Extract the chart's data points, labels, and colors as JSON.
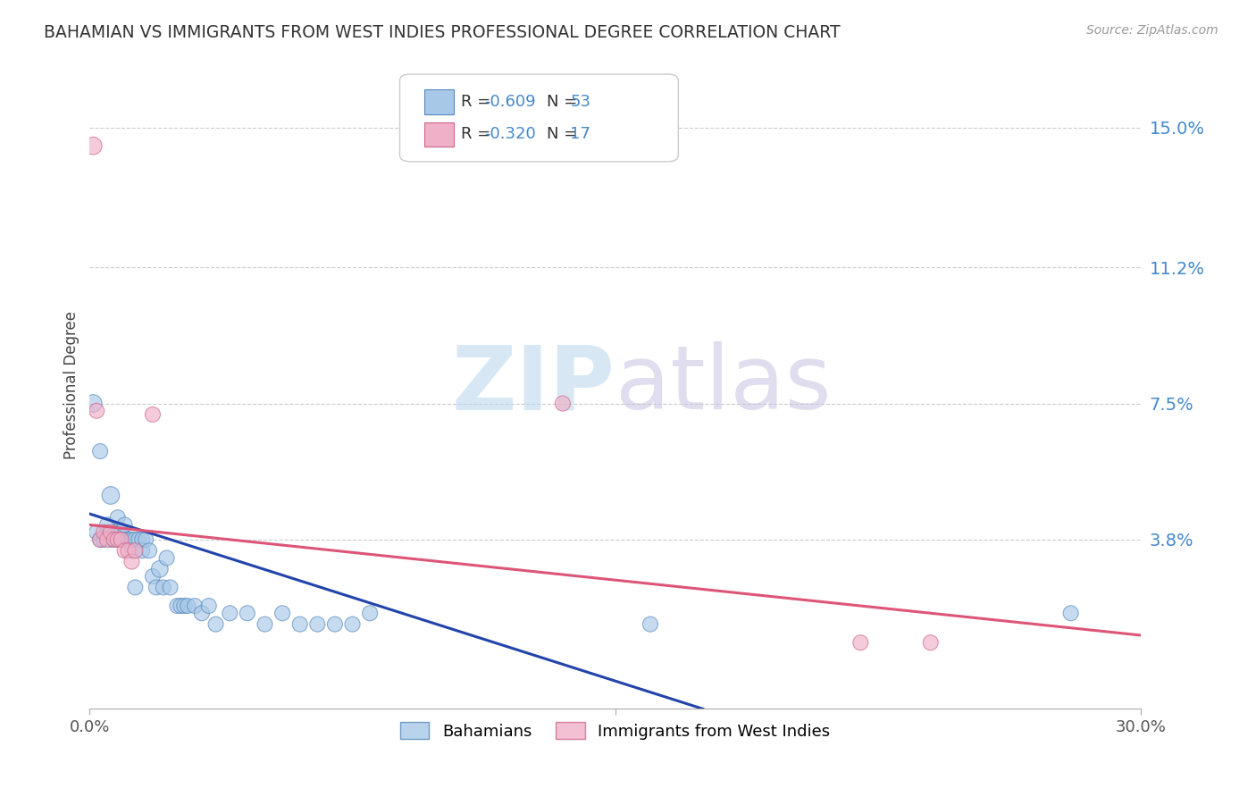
{
  "title": "BAHAMIAN VS IMMIGRANTS FROM WEST INDIES PROFESSIONAL DEGREE CORRELATION CHART",
  "source": "Source: ZipAtlas.com",
  "ylabel": "Professional Degree",
  "xlim": [
    0.0,
    0.3
  ],
  "ylim": [
    -0.008,
    0.168
  ],
  "ytick_labels": [
    "15.0%",
    "11.2%",
    "7.5%",
    "3.8%"
  ],
  "ytick_positions": [
    0.15,
    0.112,
    0.075,
    0.038
  ],
  "xtick_positions": [
    0.0,
    0.15,
    0.3
  ],
  "xtick_labels": [
    "0.0%",
    "",
    "30.0%"
  ],
  "grid_color": "#cccccc",
  "background_color": "#ffffff",
  "blue_color": "#a8c8e8",
  "pink_color": "#f0b0c8",
  "blue_edge_color": "#5588bb",
  "pink_edge_color": "#cc6688",
  "blue_line_color": "#2244aa",
  "pink_line_color": "#dd5577",
  "legend_label1": "Bahamians",
  "legend_label2": "Immigrants from West Indies",
  "blue_scatter_x": [
    0.001,
    0.002,
    0.003,
    0.003,
    0.004,
    0.005,
    0.005,
    0.006,
    0.006,
    0.007,
    0.007,
    0.008,
    0.008,
    0.009,
    0.009,
    0.01,
    0.01,
    0.011,
    0.011,
    0.012,
    0.012,
    0.013,
    0.013,
    0.014,
    0.015,
    0.015,
    0.016,
    0.017,
    0.018,
    0.019,
    0.02,
    0.021,
    0.022,
    0.023,
    0.025,
    0.026,
    0.027,
    0.028,
    0.03,
    0.032,
    0.034,
    0.036,
    0.04,
    0.045,
    0.05,
    0.055,
    0.06,
    0.065,
    0.07,
    0.075,
    0.08,
    0.16,
    0.28
  ],
  "blue_scatter_y": [
    0.075,
    0.04,
    0.062,
    0.038,
    0.038,
    0.04,
    0.042,
    0.05,
    0.038,
    0.04,
    0.038,
    0.044,
    0.038,
    0.038,
    0.04,
    0.038,
    0.042,
    0.038,
    0.038,
    0.038,
    0.035,
    0.038,
    0.025,
    0.038,
    0.038,
    0.035,
    0.038,
    0.035,
    0.028,
    0.025,
    0.03,
    0.025,
    0.033,
    0.025,
    0.02,
    0.02,
    0.02,
    0.02,
    0.02,
    0.018,
    0.02,
    0.015,
    0.018,
    0.018,
    0.015,
    0.018,
    0.015,
    0.015,
    0.015,
    0.015,
    0.018,
    0.015,
    0.018
  ],
  "blue_scatter_sizes": [
    200,
    150,
    150,
    150,
    150,
    150,
    150,
    200,
    150,
    150,
    150,
    150,
    150,
    150,
    150,
    150,
    150,
    150,
    150,
    150,
    150,
    150,
    150,
    150,
    150,
    150,
    150,
    150,
    150,
    150,
    180,
    150,
    150,
    150,
    150,
    150,
    150,
    150,
    150,
    150,
    150,
    150,
    150,
    150,
    150,
    150,
    150,
    150,
    150,
    150,
    150,
    150,
    150
  ],
  "pink_scatter_x": [
    0.001,
    0.002,
    0.003,
    0.004,
    0.005,
    0.006,
    0.007,
    0.008,
    0.009,
    0.01,
    0.011,
    0.012,
    0.013,
    0.018,
    0.135,
    0.22,
    0.24
  ],
  "pink_scatter_y": [
    0.145,
    0.073,
    0.038,
    0.04,
    0.038,
    0.04,
    0.038,
    0.038,
    0.038,
    0.035,
    0.035,
    0.032,
    0.035,
    0.072,
    0.075,
    0.01,
    0.01
  ],
  "pink_scatter_sizes": [
    200,
    150,
    150,
    150,
    150,
    150,
    150,
    150,
    150,
    150,
    150,
    150,
    150,
    150,
    150,
    150,
    150
  ],
  "blue_trend_x": [
    0.0,
    0.175
  ],
  "blue_trend_y": [
    0.045,
    -0.008
  ],
  "pink_trend_x": [
    0.0,
    0.3
  ],
  "pink_trend_y": [
    0.042,
    0.012
  ]
}
